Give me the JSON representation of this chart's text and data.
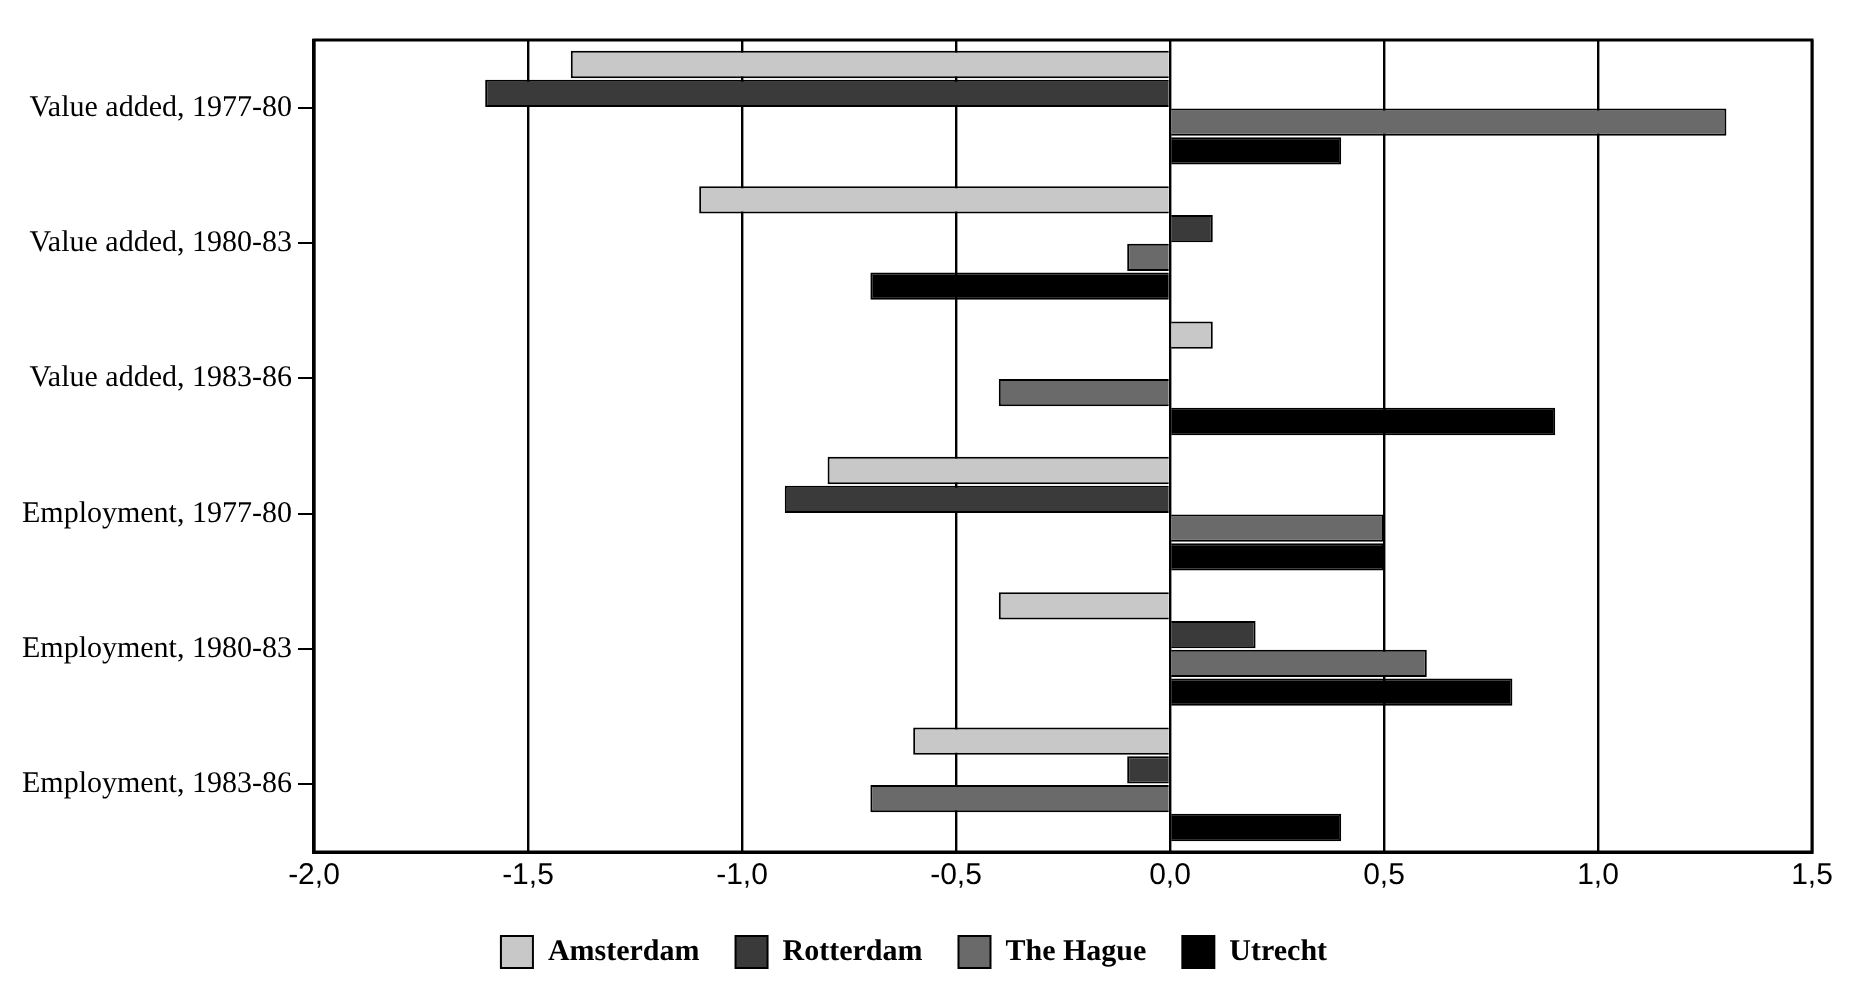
{
  "chart_data": {
    "type": "bar",
    "orientation": "horizontal",
    "categories": [
      "Value added, 1977-80",
      "Value added, 1980-83",
      "Value added, 1983-86",
      "Employment, 1977-80",
      "Employment, 1980-83",
      "Employment, 1983-86"
    ],
    "series": [
      {
        "name": "Amsterdam",
        "color": "#c8c8c8",
        "values": [
          -1.4,
          -1.1,
          0.1,
          -0.8,
          -0.4,
          -0.6
        ]
      },
      {
        "name": "Rotterdam",
        "color": "#3a3a3a",
        "values": [
          -1.6,
          0.1,
          0,
          -0.9,
          0.2,
          -0.1
        ]
      },
      {
        "name": "The Hague",
        "color": "#6a6a6a",
        "values": [
          1.3,
          -0.1,
          -0.4,
          0.5,
          0.6,
          -0.7
        ]
      },
      {
        "name": "Utrecht",
        "color": "#000000",
        "values": [
          0.4,
          -0.7,
          0.9,
          0.5,
          0.8,
          0.4
        ]
      }
    ],
    "xlim": [
      -2,
      1.5
    ],
    "xticks": [
      {
        "value": -2,
        "label": "-2,0"
      },
      {
        "value": -1.5,
        "label": "-1,5"
      },
      {
        "value": -1,
        "label": "-1,0"
      },
      {
        "value": -0.5,
        "label": "-0,5"
      },
      {
        "value": 0,
        "label": "0,0"
      },
      {
        "value": 0.5,
        "label": "0,5"
      },
      {
        "value": 1,
        "label": "1,0"
      },
      {
        "value": 1.5,
        "label": "1,5"
      }
    ],
    "grid": "x",
    "legend": "bottom"
  }
}
